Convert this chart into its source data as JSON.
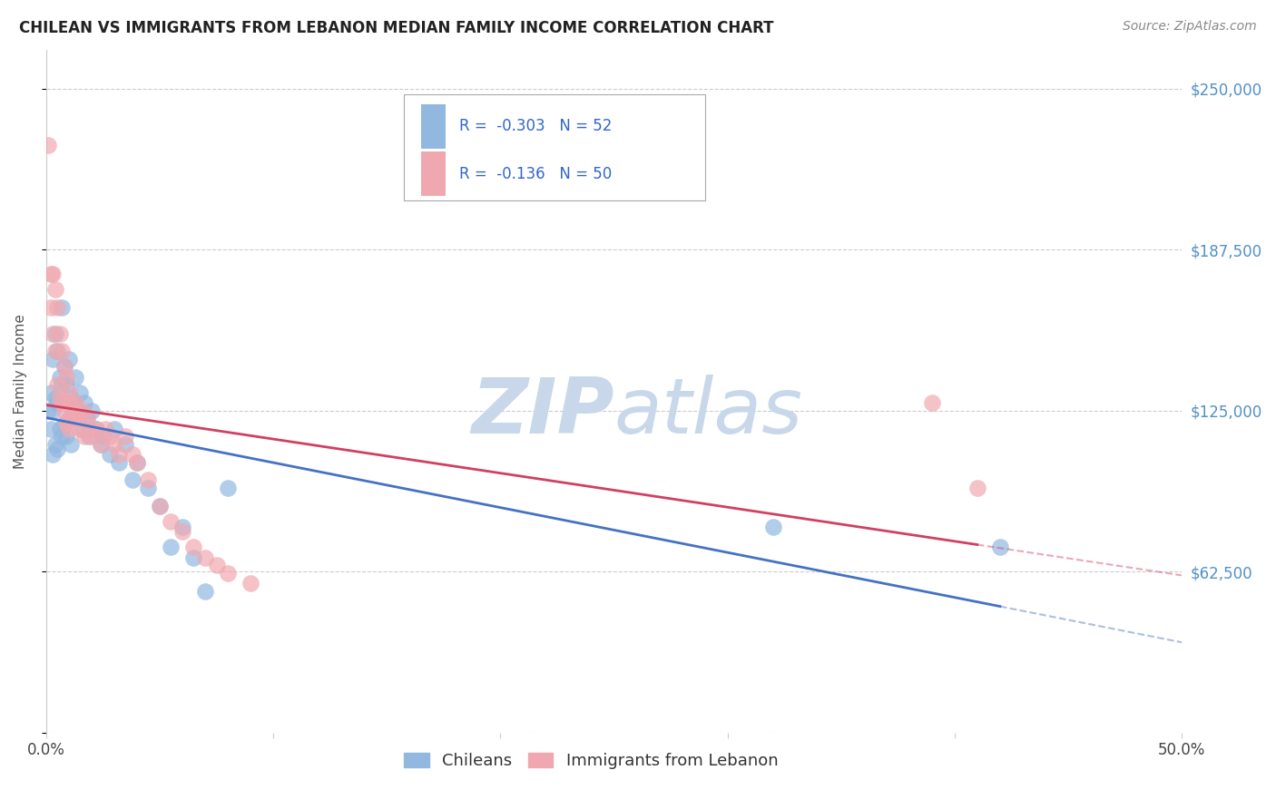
{
  "title": "CHILEAN VS IMMIGRANTS FROM LEBANON MEDIAN FAMILY INCOME CORRELATION CHART",
  "source": "Source: ZipAtlas.com",
  "ylabel": "Median Family Income",
  "xlim": [
    0.0,
    0.5
  ],
  "ylim": [
    0,
    265000
  ],
  "yticks": [
    0,
    62500,
    125000,
    187500,
    250000
  ],
  "ytick_labels": [
    "",
    "$62,500",
    "$125,000",
    "$187,500",
    "$250,000"
  ],
  "xticks": [
    0.0,
    0.1,
    0.2,
    0.3,
    0.4,
    0.5
  ],
  "xtick_labels": [
    "0.0%",
    "",
    "",
    "",
    "",
    "50.0%"
  ],
  "legend_r1": "-0.303",
  "legend_n1": "52",
  "legend_r2": "-0.136",
  "legend_n2": "50",
  "blue_color": "#92b8e0",
  "pink_color": "#f0a8b0",
  "trend_blue": "#4472c4",
  "trend_pink": "#d04060",
  "watermark_color": "#c8d8ea",
  "right_tick_color": "#5090c8",
  "background": "#ffffff",
  "chileans_x": [
    0.001,
    0.002,
    0.002,
    0.003,
    0.003,
    0.003,
    0.004,
    0.004,
    0.004,
    0.005,
    0.005,
    0.005,
    0.006,
    0.006,
    0.007,
    0.007,
    0.007,
    0.008,
    0.008,
    0.009,
    0.009,
    0.01,
    0.01,
    0.011,
    0.011,
    0.012,
    0.013,
    0.014,
    0.015,
    0.016,
    0.017,
    0.018,
    0.019,
    0.02,
    0.022,
    0.024,
    0.025,
    0.028,
    0.03,
    0.032,
    0.035,
    0.038,
    0.04,
    0.045,
    0.05,
    0.055,
    0.06,
    0.065,
    0.07,
    0.08,
    0.32,
    0.42
  ],
  "chileans_y": [
    125000,
    132000,
    118000,
    145000,
    125000,
    108000,
    155000,
    130000,
    112000,
    148000,
    128000,
    110000,
    138000,
    118000,
    165000,
    135000,
    115000,
    142000,
    120000,
    135000,
    115000,
    145000,
    122000,
    130000,
    112000,
    128000,
    138000,
    125000,
    132000,
    118000,
    128000,
    122000,
    115000,
    125000,
    118000,
    112000,
    115000,
    108000,
    118000,
    105000,
    112000,
    98000,
    105000,
    95000,
    88000,
    72000,
    80000,
    68000,
    55000,
    95000,
    80000,
    72000
  ],
  "lebanon_x": [
    0.001,
    0.002,
    0.002,
    0.003,
    0.003,
    0.004,
    0.004,
    0.005,
    0.005,
    0.006,
    0.006,
    0.007,
    0.007,
    0.008,
    0.008,
    0.009,
    0.009,
    0.01,
    0.01,
    0.011,
    0.011,
    0.012,
    0.013,
    0.014,
    0.015,
    0.016,
    0.017,
    0.018,
    0.019,
    0.02,
    0.022,
    0.024,
    0.026,
    0.028,
    0.03,
    0.032,
    0.035,
    0.038,
    0.04,
    0.045,
    0.05,
    0.055,
    0.06,
    0.065,
    0.07,
    0.075,
    0.08,
    0.09,
    0.39,
    0.41
  ],
  "lebanon_y": [
    228000,
    178000,
    165000,
    178000,
    155000,
    172000,
    148000,
    165000,
    135000,
    155000,
    130000,
    148000,
    128000,
    142000,
    125000,
    138000,
    120000,
    132000,
    118000,
    128000,
    122000,
    125000,
    128000,
    122000,
    118000,
    125000,
    115000,
    122000,
    118000,
    115000,
    118000,
    112000,
    118000,
    115000,
    112000,
    108000,
    115000,
    108000,
    105000,
    98000,
    88000,
    82000,
    78000,
    72000,
    68000,
    65000,
    62000,
    58000,
    128000,
    95000
  ]
}
